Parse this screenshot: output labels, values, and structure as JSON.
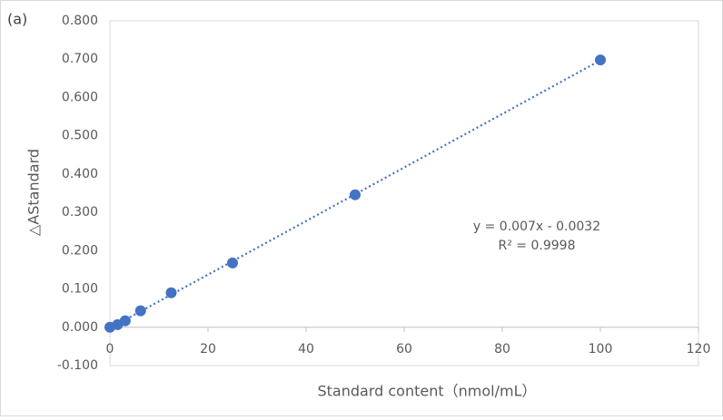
{
  "label": "(a)",
  "chart_data": {
    "type": "scatter",
    "x_label": "Standard content（nmol/mL）",
    "y_label": "△AStandard",
    "x": [
      0,
      1.5625,
      3.125,
      6.25,
      12.5,
      25,
      50,
      100
    ],
    "values": [
      0.0,
      0.007,
      0.017,
      0.043,
      0.09,
      0.168,
      0.346,
      0.698
    ],
    "color": "#4472c4",
    "xlim": [
      0,
      120
    ],
    "xticks": [
      0,
      20,
      40,
      60,
      80,
      100,
      120
    ],
    "ylim": [
      -0.1,
      0.8
    ],
    "yticks": [
      {
        "value": -0.1,
        "label": "-0.100"
      },
      {
        "value": 0,
        "label": "0.000"
      },
      {
        "value": 0.1,
        "label": "0.100"
      },
      {
        "value": 0.2,
        "label": "0.200"
      },
      {
        "value": 0.3,
        "label": "0.300"
      },
      {
        "value": 0.4,
        "label": "0.400"
      },
      {
        "value": 0.5,
        "label": "0.500"
      },
      {
        "value": 0.6,
        "label": "0.600"
      },
      {
        "value": 0.7,
        "label": "0.700"
      },
      {
        "value": 0.8,
        "label": "0.800"
      }
    ],
    "trendline": {
      "equation": "y = 0.007x - 0.0032",
      "r_squared": "R² = 0.9998"
    }
  }
}
